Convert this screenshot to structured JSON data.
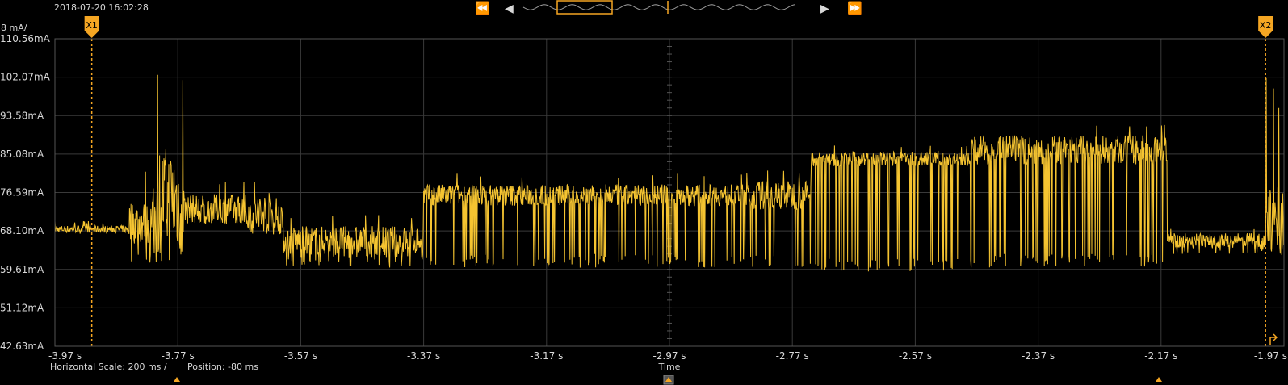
{
  "header": {
    "timestamp": "2018-07-20 16:02:28",
    "nav_first_icon": "skip-to-start-icon",
    "nav_prev_icon": "step-back-icon",
    "nav_next_icon": "step-forward-icon",
    "nav_last_icon": "skip-to-end-icon"
  },
  "colors": {
    "trace": "#f5c431",
    "cursor": "#f5a623",
    "grid": "#3a3a3a",
    "background": "#000000"
  },
  "cursors": [
    {
      "label": "X1",
      "x": -3.91
    },
    {
      "label": "X2",
      "x": -2.0
    }
  ],
  "footer": {
    "horizontal_scale": "Horizontal Scale: 200 ms /",
    "position": "Position: -80 ms"
  },
  "chart_data": {
    "type": "line",
    "scale_label": "8 mA/",
    "xlabel": "Time",
    "xlim": [
      -3.97,
      -1.97
    ],
    "ylim": [
      42.63,
      110.56
    ],
    "grid": true,
    "x_ticks": [
      "-3.97 s",
      "-3.77 s",
      "-3.57 s",
      "-3.37 s",
      "-3.17 s",
      "-2.97 s",
      "-2.77 s",
      "-2.57 s",
      "-2.37 s",
      "-2.17 s",
      "-1.97 s"
    ],
    "y_ticks": [
      "110.56mA",
      "102.07mA",
      "93.58mA",
      "85.08mA",
      "76.59mA",
      "68.10mA",
      "59.61mA",
      "51.12mA",
      "42.63mA"
    ],
    "envelope": [
      {
        "t0": -3.97,
        "t1": -3.85,
        "base": 68.5,
        "top": 69.5,
        "bottom": 67.5,
        "spike": 0
      },
      {
        "t0": -3.85,
        "t1": -3.81,
        "base": 70,
        "top": 76,
        "bottom": 61,
        "spike": 88
      },
      {
        "t0": -3.81,
        "t1": -3.76,
        "base": 75,
        "top": 90,
        "bottom": 61,
        "spike": 103
      },
      {
        "t0": -3.76,
        "t1": -3.66,
        "base": 73,
        "top": 77,
        "bottom": 69,
        "spike": 79
      },
      {
        "t0": -3.66,
        "t1": -3.6,
        "base": 72,
        "top": 78,
        "bottom": 68,
        "spike": 80
      },
      {
        "t0": -3.6,
        "t1": -3.54,
        "base": 66,
        "top": 70,
        "bottom": 60,
        "spike": 72
      },
      {
        "t0": -3.54,
        "t1": -3.37,
        "base": 66,
        "top": 70,
        "bottom": 60,
        "spike": 72
      },
      {
        "t0": -3.37,
        "t1": -2.84,
        "base": 76,
        "top": 79,
        "bottom": 60,
        "spike": 81
      },
      {
        "t0": -2.84,
        "t1": -2.74,
        "base": 76,
        "top": 80,
        "bottom": 60,
        "spike": 82
      },
      {
        "t0": -2.74,
        "t1": -2.48,
        "base": 84,
        "top": 86,
        "bottom": 59,
        "spike": 87
      },
      {
        "t0": -2.48,
        "t1": -2.16,
        "base": 86,
        "top": 90,
        "bottom": 60,
        "spike": 92
      },
      {
        "t0": -2.16,
        "t1": -2.0,
        "base": 66,
        "top": 68,
        "bottom": 63,
        "spike": 69
      },
      {
        "t0": -2.0,
        "t1": -1.97,
        "base": 70,
        "top": 80,
        "bottom": 64,
        "spike": 104
      }
    ]
  }
}
